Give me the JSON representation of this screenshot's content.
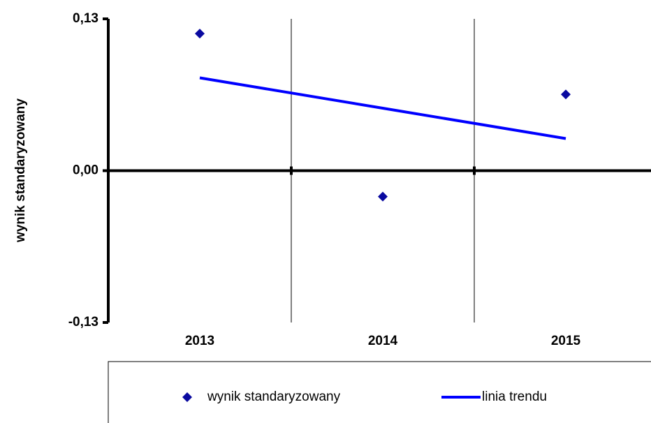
{
  "chart_data": {
    "type": "line",
    "y_label": "wynik standaryzowany",
    "categories": [
      "2013",
      "2014",
      "2015"
    ],
    "series": [
      {
        "name": "wynik standaryzowany",
        "type": "scatter",
        "color": "#0a0aa0",
        "values": [
          0.1174,
          -0.0222,
          0.0653
        ]
      },
      {
        "name": "linia trendu",
        "type": "line",
        "color": "#0000ff",
        "values": [
          0.0795,
          0.0535,
          0.0275
        ]
      }
    ],
    "ylim": [
      -0.13,
      0.13
    ],
    "yticks": [
      {
        "value": -0.13,
        "label": "-0,13"
      },
      {
        "value": 0,
        "label": "0,00"
      },
      {
        "value": 0.13,
        "label": "0,13"
      }
    ],
    "grid": true
  }
}
